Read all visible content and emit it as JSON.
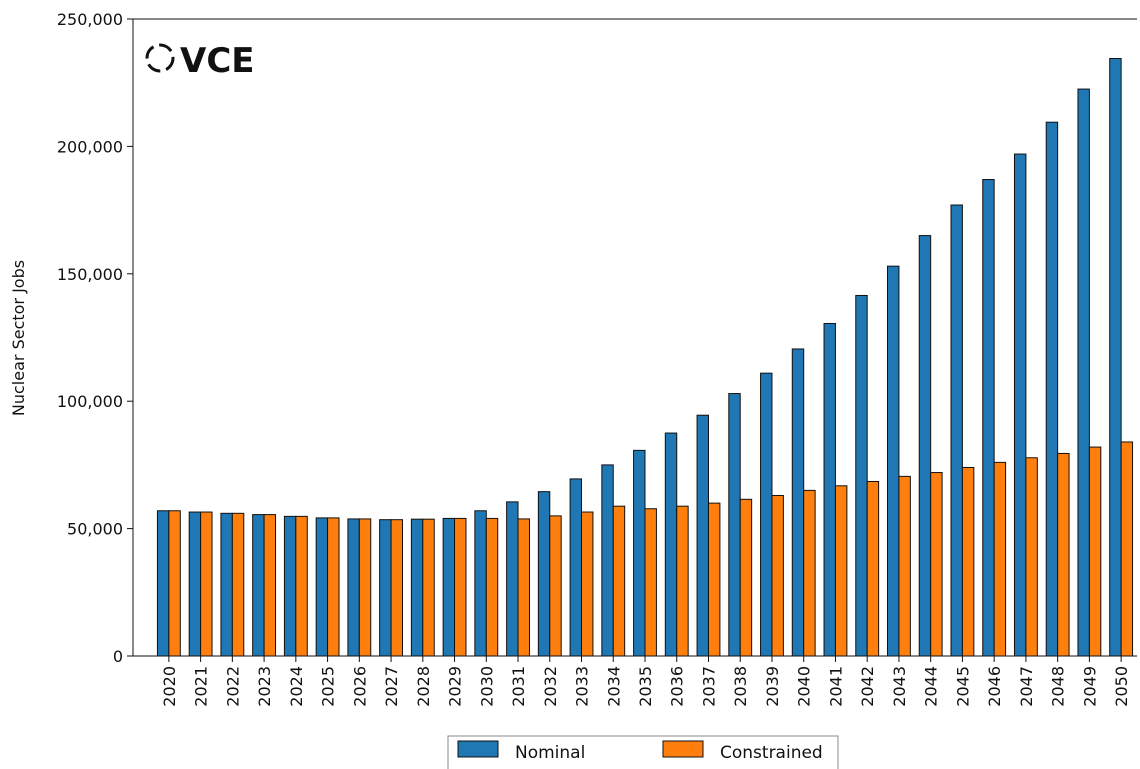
{
  "chart_data": {
    "type": "bar",
    "logo": "VCE",
    "y_label": "Nuclear Sector Jobs",
    "categories": [
      "2020",
      "2021",
      "2022",
      "2023",
      "2024",
      "2025",
      "2026",
      "2027",
      "2028",
      "2029",
      "2030",
      "2031",
      "2032",
      "2033",
      "2034",
      "2035",
      "2036",
      "2037",
      "2038",
      "2039",
      "2040",
      "2041",
      "2042",
      "2043",
      "2044",
      "2045",
      "2046",
      "2047",
      "2048",
      "2049",
      "2050"
    ],
    "series": [
      {
        "name": "Nominal",
        "color": "#1f77b4",
        "values": [
          57000,
          56500,
          56000,
          55500,
          54800,
          54200,
          53800,
          53500,
          53700,
          54000,
          57000,
          60500,
          64500,
          69500,
          75000,
          80700,
          87500,
          94500,
          103000,
          111000,
          120500,
          130500,
          141500,
          153000,
          165000,
          177000,
          187000,
          197000,
          209500,
          222500,
          234500
        ]
      },
      {
        "name": "Constrained",
        "color": "#ff7f0e",
        "values": [
          57000,
          56500,
          56000,
          55500,
          54800,
          54200,
          53800,
          53500,
          53700,
          54000,
          54000,
          53800,
          55000,
          56500,
          58800,
          57800,
          58800,
          60000,
          61500,
          63000,
          65000,
          66800,
          68500,
          70500,
          72000,
          74000,
          76000,
          77800,
          79500,
          82000,
          84000
        ]
      }
    ],
    "ylim": [
      0,
      250000
    ],
    "yticks": [
      0,
      {
        "value": 50000,
        "label": "50,000"
      },
      {
        "value": 100000,
        "label": "100,000"
      },
      {
        "value": 150000,
        "label": "150,000"
      },
      {
        "value": 200000,
        "label": "200,000"
      },
      {
        "value": 250000,
        "label": "250,000"
      }
    ],
    "legend": "bottom",
    "grid": false
  }
}
